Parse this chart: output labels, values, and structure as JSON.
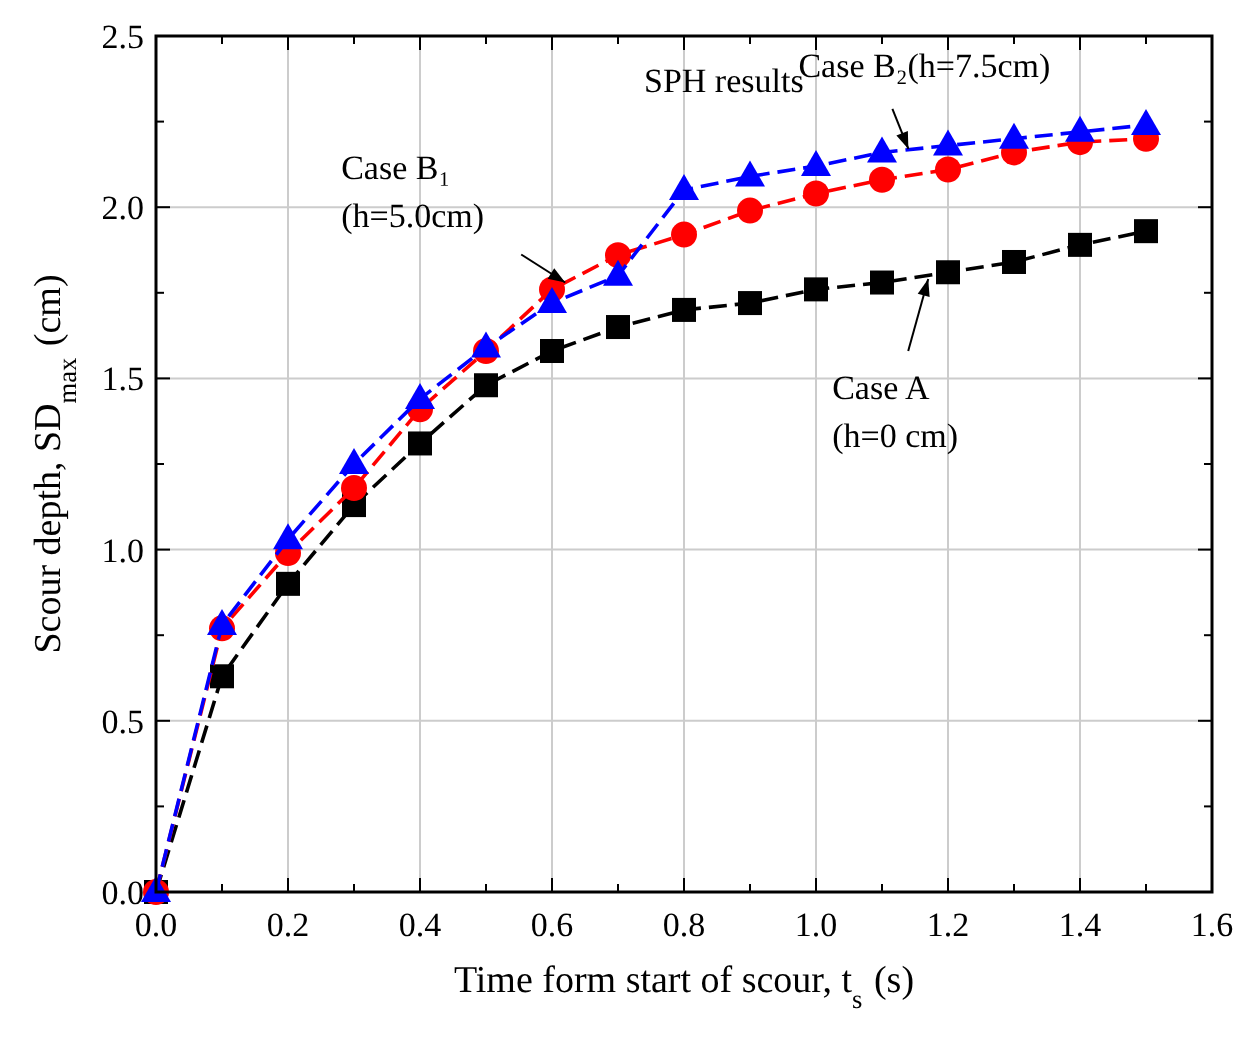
{
  "chart_data": {
    "type": "line",
    "xlabel": "Time form start of scour, t$_{s}$ (s)",
    "ylabel": "Scour depth, SD$_{max}$ (cm)",
    "x": [
      0,
      0.1,
      0.2,
      0.3,
      0.4,
      0.5,
      0.6,
      0.7,
      0.8,
      0.9,
      1.0,
      1.1,
      1.2,
      1.3,
      1.4,
      1.5
    ],
    "series": [
      {
        "color": "#000000",
        "marker": "square",
        "values": [
          0,
          0.63,
          0.9,
          1.13,
          1.31,
          1.48,
          1.58,
          1.65,
          1.7,
          1.72,
          1.76,
          1.78,
          1.81,
          1.84,
          1.89,
          1.93
        ]
      },
      {
        "color": "#ff0000",
        "marker": "circle",
        "values": [
          0,
          0.77,
          0.99,
          1.18,
          1.41,
          1.58,
          1.76,
          1.86,
          1.92,
          1.99,
          2.04,
          2.08,
          2.11,
          2.16,
          2.19,
          2.2
        ]
      },
      {
        "color": "#0000ff",
        "marker": "triangle",
        "values": [
          0,
          0.78,
          1.03,
          1.25,
          1.44,
          1.59,
          1.72,
          1.8,
          2.05,
          2.09,
          2.12,
          2.16,
          2.18,
          2.2,
          2.22,
          2.24
        ]
      }
    ],
    "xlim": [
      0,
      1.6
    ],
    "ylim": [
      0,
      2.5
    ],
    "xticks": [
      {
        "value": 0,
        "label": "0.0"
      },
      {
        "value": 0.1,
        "label": null
      },
      {
        "value": 0.2,
        "label": "0.2"
      },
      {
        "value": 0.3,
        "label": null
      },
      {
        "value": 0.4,
        "label": "0.4"
      },
      {
        "value": 0.5,
        "label": null
      },
      {
        "value": 0.6,
        "label": "0.6"
      },
      {
        "value": 0.7,
        "label": null
      },
      {
        "value": 0.8,
        "label": "0.8"
      },
      {
        "value": 0.9,
        "label": null
      },
      {
        "value": 1.0,
        "label": "1.0"
      },
      {
        "value": 1.1,
        "label": null
      },
      {
        "value": 1.2,
        "label": "1.2"
      },
      {
        "value": 1.3,
        "label": null
      },
      {
        "value": 1.4,
        "label": "1.4"
      },
      {
        "value": 1.5,
        "label": null
      },
      {
        "value": 1.6,
        "label": "1.6"
      }
    ],
    "yticks": [
      {
        "value": 0,
        "label": "0.0"
      },
      {
        "value": 0.25,
        "label": null
      },
      {
        "value": 0.5,
        "label": "0.5"
      },
      {
        "value": 0.75,
        "label": null
      },
      {
        "value": 1.0,
        "label": "1.0"
      },
      {
        "value": 1.25,
        "label": null
      },
      {
        "value": 1.5,
        "label": "1.5"
      },
      {
        "value": 1.75,
        "label": null
      },
      {
        "value": 2.0,
        "label": "2.0"
      },
      {
        "value": 2.25,
        "label": null
      },
      {
        "value": 2.5,
        "label": "2.5"
      }
    ],
    "grid": true,
    "line_style": "dashed",
    "annotations": [
      "SPH results",
      {
        "text": "Case B₁\n(h=5.0cm)",
        "x": 0.62,
        "y": 1.78
      },
      {
        "text": "Case B₂(h=7.5cm)",
        "x": 1.14,
        "y": 2.17
      },
      {
        "text": "Case A\n(h=0 cm)",
        "x": 1.17,
        "y": 1.79
      }
    ]
  }
}
